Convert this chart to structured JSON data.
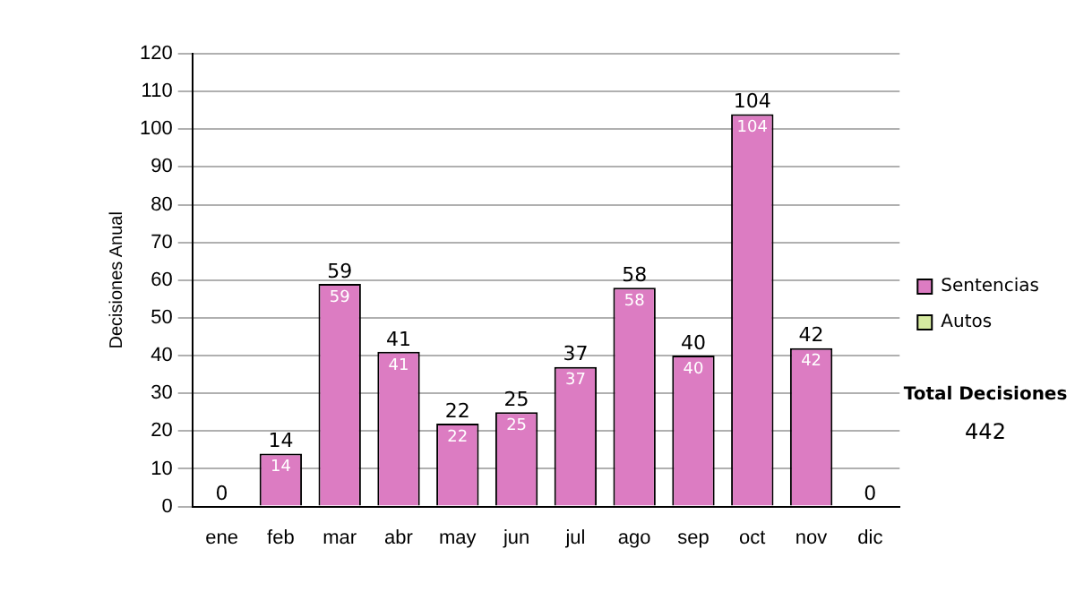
{
  "chart_data": {
    "type": "bar",
    "stacked": true,
    "ylabel": "Decisiones Anual",
    "categories": [
      "ene",
      "feb",
      "mar",
      "abr",
      "may",
      "jun",
      "jul",
      "ago",
      "sep",
      "oct",
      "nov",
      "dic"
    ],
    "series": [
      {
        "name": "Sentencias",
        "color": "#dc7cc2",
        "values": [
          0,
          14,
          59,
          41,
          22,
          25,
          37,
          58,
          40,
          104,
          42,
          0
        ],
        "value_labels": [
          null,
          "14",
          "59",
          "41",
          "22",
          "25",
          "37",
          "58",
          "40",
          "104",
          "42",
          null
        ]
      },
      {
        "name": "Autos",
        "color": "#d6eaa0",
        "values": [
          0,
          0,
          0,
          0,
          0,
          0,
          0,
          0,
          0,
          0,
          0,
          0
        ]
      }
    ],
    "totals": [
      "0",
      "14",
      "59",
      "41",
      "22",
      "25",
      "37",
      "58",
      "40",
      "104",
      "42",
      "0"
    ],
    "ylim": [
      0,
      120
    ],
    "yticks": [
      0,
      10,
      20,
      30,
      40,
      50,
      60,
      70,
      80,
      90,
      100,
      110,
      120
    ],
    "grid": "y",
    "legend": "right",
    "annotations": [
      "Total Decisiones",
      "442"
    ]
  }
}
